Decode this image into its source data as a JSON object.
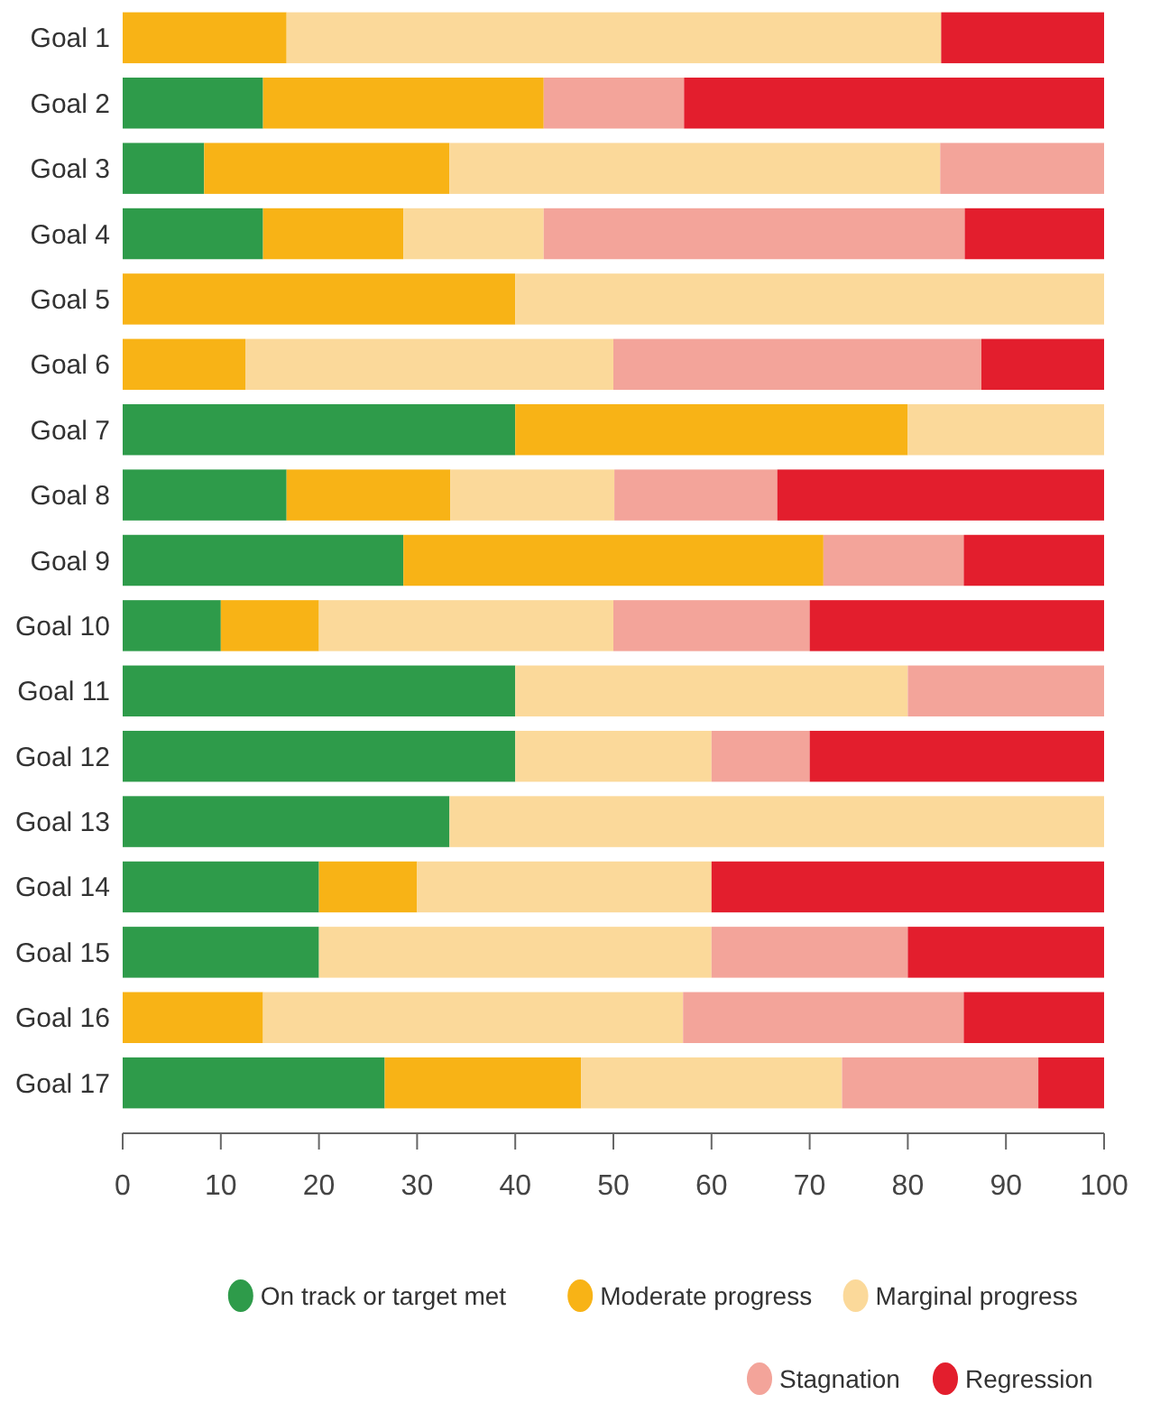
{
  "chart_data": {
    "type": "bar",
    "orientation": "horizontal",
    "stacked": true,
    "categories": [
      "Goal 1",
      "Goal 2",
      "Goal 3",
      "Goal 4",
      "Goal 5",
      "Goal 6",
      "Goal 7",
      "Goal 8",
      "Goal 9",
      "Goal 10",
      "Goal 11",
      "Goal 12",
      "Goal 13",
      "Goal 14",
      "Goal 15",
      "Goal 16",
      "Goal 17"
    ],
    "series": [
      {
        "name": "On track or target met",
        "color": "#2e9b4a",
        "values": [
          0,
          14.3,
          8.3,
          14.3,
          0,
          0,
          40,
          16.7,
          28.6,
          10,
          40,
          40,
          33.3,
          20,
          20,
          0,
          26.7
        ]
      },
      {
        "name": "Moderate progress",
        "color": "#f8b316",
        "values": [
          16.7,
          28.6,
          25,
          14.3,
          40,
          12.5,
          40,
          16.7,
          42.8,
          10,
          0,
          0,
          0,
          10,
          0,
          14.3,
          20
        ]
      },
      {
        "name": "Marginal progress",
        "color": "#fbd99a",
        "values": [
          66.7,
          0,
          50,
          14.3,
          60,
          37.5,
          20,
          16.7,
          0,
          30,
          40,
          20,
          66.7,
          30,
          40,
          42.8,
          26.6
        ]
      },
      {
        "name": "Stagnation",
        "color": "#f3a49a",
        "values": [
          0,
          14.3,
          16.7,
          42.9,
          0,
          37.5,
          0,
          16.6,
          14.3,
          20,
          20,
          10,
          0,
          0,
          20,
          28.6,
          20
        ]
      },
      {
        "name": "Regression",
        "color": "#e31e2d",
        "values": [
          16.6,
          42.8,
          0,
          14.2,
          0,
          12.5,
          0,
          33.3,
          14.3,
          30,
          0,
          30,
          0,
          40,
          20,
          14.3,
          6.7
        ]
      }
    ],
    "xlim": [
      0,
      100
    ],
    "xticks": [
      0,
      10,
      20,
      30,
      40,
      50,
      60,
      70,
      80,
      90,
      100
    ],
    "grid": false,
    "legend": "bottom"
  }
}
